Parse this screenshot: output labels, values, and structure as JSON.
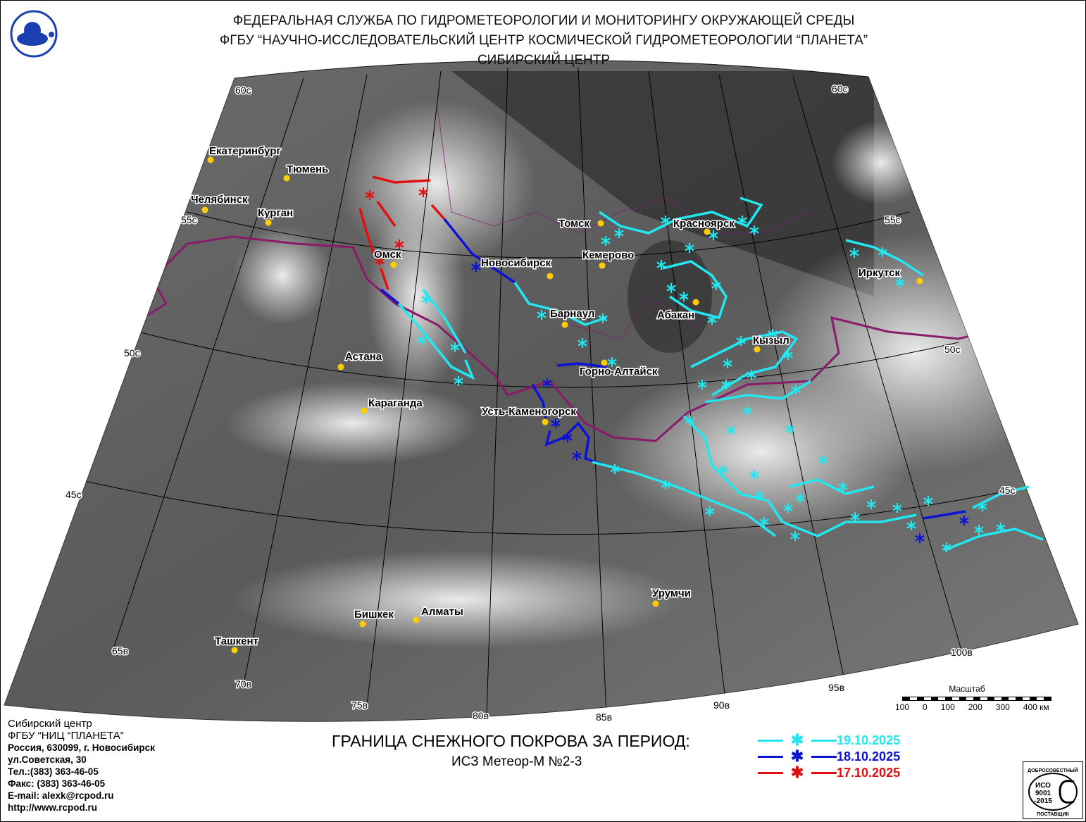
{
  "header": {
    "line1": "ФЕДЕРАЛЬНАЯ СЛУЖБА ПО ГИДРОМЕТЕОРОЛОГИИ И МОНИТОРИНГУ ОКРУЖАЮЩЕЙ СРЕДЫ",
    "line2": "ФГБУ “НАУЧНО-ИССЛЕДОВАТЕЛЬСКИЙ ЦЕНТР КОСМИЧЕСКОЙ ГИДРОМЕТЕОРОЛОГИИ “ПЛАНЕТА”",
    "line3": "СИБИРСКИЙ ЦЕНТР"
  },
  "map": {
    "graticule_labels": {
      "lat60_left": "60с",
      "lat60_right": "60с",
      "lat55_left": "55с",
      "lat55_right": "55с",
      "lat50_left": "50с",
      "lat50_right": "50с",
      "lat45_left": "45с",
      "lat45_right": "45с",
      "lon65": "65в",
      "lon70": "70в",
      "lon75": "75в",
      "lon80": "80в",
      "lon85": "85в",
      "lon90": "90в",
      "lon95": "95в",
      "lon100": "100в"
    },
    "cities": [
      "Екатеринбург",
      "Тюмень",
      "Челябинск",
      "Курган",
      "Омск",
      "Томск",
      "Красноярск",
      "Кемерово",
      "Новосибирск",
      "Иркутск",
      "Барнаул",
      "Абакан",
      "Кызыл",
      "Горно-Алтайск",
      "Астана",
      "Караганда",
      "Усть-Каменогорск",
      "Урумчи",
      "Бишкек",
      "Алматы",
      "Ташкент"
    ],
    "city_marker_color": "#ffcc00"
  },
  "scale": {
    "title": "Масштаб",
    "ticks": [
      "100",
      "0",
      "100",
      "200",
      "300",
      "400 км"
    ]
  },
  "legend": {
    "title": "ГРАНИЦА СНЕЖНОГО ПОКРОВА ЗА ПЕРИОД:",
    "subtitle": "ИСЗ Метеор-М №2-3",
    "marker_icon": "asterisk-icon",
    "entries": [
      {
        "date": "19.10.2025",
        "color": "#22e6f0"
      },
      {
        "date": "18.10.2025",
        "color": "#0a14d2"
      },
      {
        "date": "17.10.2025",
        "color": "#e01010"
      }
    ]
  },
  "contact": {
    "lines": [
      "Сибирский центр",
      "ФГБУ “НИЦ “ПЛАНЕТА”",
      "Россия, 630099, г. Новосибирск",
      "ул.Советская, 30",
      "Тел.:(383) 363-46-05",
      "Факс: (383) 363-46-05",
      "E-mail: alexk@rcpod.ru",
      "http://www.rcpod.ru"
    ]
  },
  "iso_badge": {
    "top": "ДОБРОСОВЕСТНЫЙ",
    "center": "ИСО 9001 -2015",
    "bottom": "ПОСТАВЩИК"
  }
}
